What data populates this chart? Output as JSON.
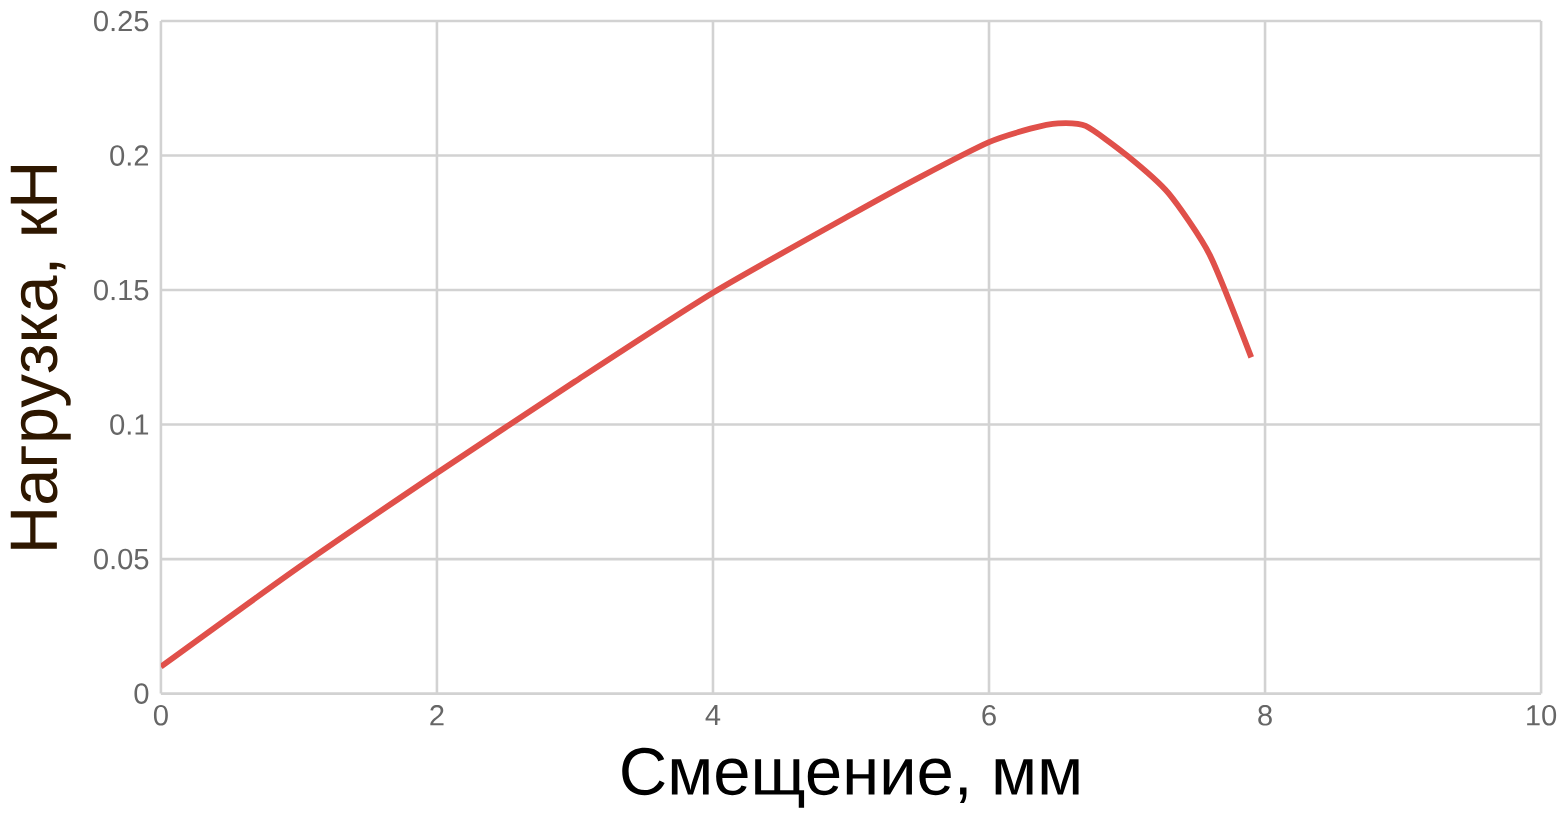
{
  "chart_data": {
    "type": "line",
    "xlabel": "Смещение, мм",
    "ylabel": "Нагрузка, кН",
    "xlim": [
      0,
      10
    ],
    "xticks": [
      0,
      2,
      4,
      6,
      8,
      10
    ],
    "ylim": [
      0,
      0.25
    ],
    "yticks": [
      0,
      0.05,
      0.1,
      0.15,
      0.2,
      0.25
    ],
    "grid": true,
    "marker": "none",
    "series": [
      {
        "color": "#e0504a",
        "x": [
          0,
          1,
          2,
          3,
          4,
          5,
          5.5,
          6,
          6.3,
          6.5,
          6.7,
          7,
          7.3,
          7.6,
          7.9
        ],
        "values": [
          0.01,
          0.047,
          0.082,
          0.116,
          0.149,
          0.178,
          0.192,
          0.205,
          0.21,
          0.212,
          0.211,
          0.2,
          0.186,
          0.163,
          0.125
        ]
      }
    ]
  }
}
